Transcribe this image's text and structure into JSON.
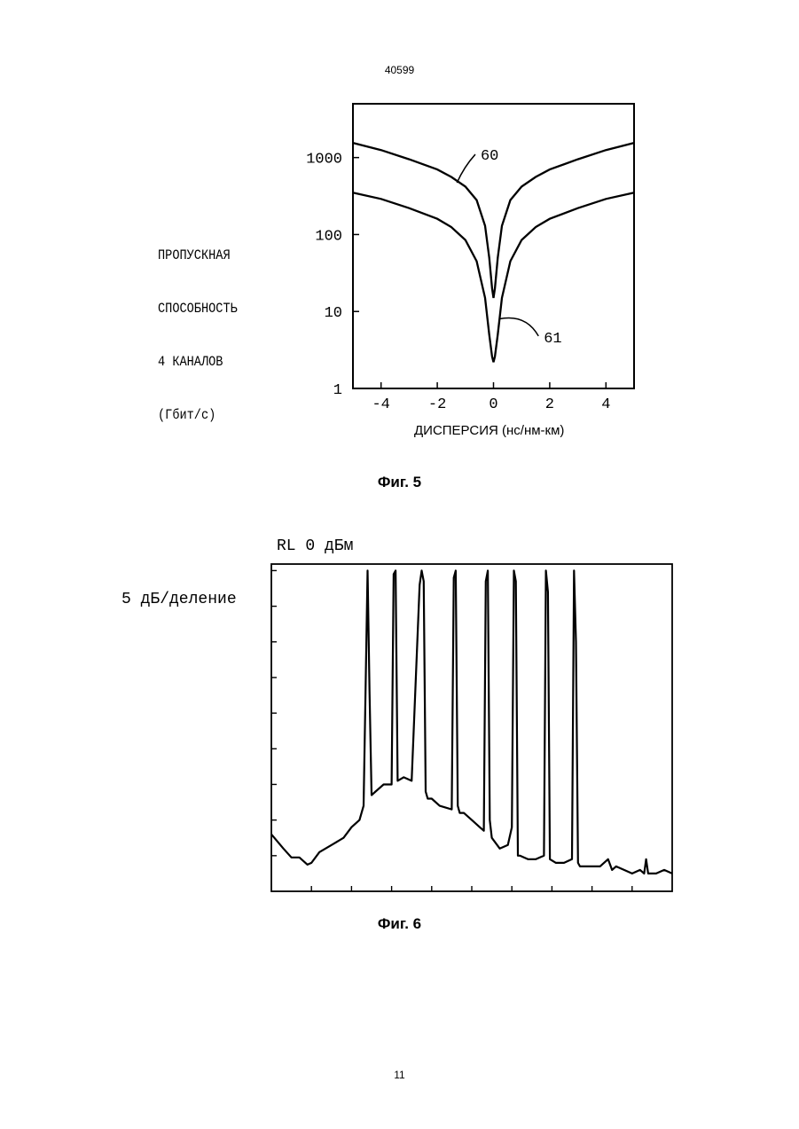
{
  "document": {
    "number": "40599",
    "page": "11"
  },
  "figure5": {
    "caption": "Фиг. 5",
    "ylabel_lines": [
      "ПРОПУСКНАЯ",
      "СПОСОБНОСТЬ",
      "4 КАНАЛОВ",
      "(Гбит/с)"
    ],
    "xlabel": "ДИСПЕРСИЯ (нс/нм-км)",
    "chart_data": {
      "type": "line",
      "x_scale": "linear",
      "y_scale": "log",
      "xlim": [
        -5,
        5
      ],
      "ylim": [
        1,
        5000
      ],
      "x_ticks": [
        -4,
        -2,
        0,
        2,
        4
      ],
      "y_ticks": [
        1,
        10,
        100,
        1000
      ],
      "x_tick_labels": [
        "-4",
        "-2",
        "0",
        "2",
        "4"
      ],
      "y_tick_labels": [
        "1",
        "10",
        "100",
        "1000"
      ],
      "grid": false,
      "series": [
        {
          "name": "60",
          "x": [
            -5,
            -4,
            -3,
            -2,
            -1.5,
            -1,
            -0.6,
            -0.3,
            -0.15,
            -0.05,
            0,
            0.05,
            0.15,
            0.3,
            0.6,
            1,
            1.5,
            2,
            3,
            4,
            5
          ],
          "y": [
            1550,
            1250,
            950,
            700,
            560,
            420,
            280,
            130,
            50,
            20,
            15,
            20,
            50,
            130,
            280,
            420,
            560,
            700,
            950,
            1250,
            1550
          ]
        },
        {
          "name": "61",
          "x": [
            -5,
            -4,
            -3,
            -2,
            -1.5,
            -1,
            -0.6,
            -0.3,
            -0.15,
            -0.05,
            0,
            0.05,
            0.15,
            0.3,
            0.6,
            1,
            1.5,
            2,
            3,
            4,
            5
          ],
          "y": [
            350,
            290,
            220,
            160,
            125,
            85,
            45,
            15,
            5,
            2.6,
            2.2,
            2.6,
            5,
            15,
            45,
            85,
            125,
            160,
            220,
            290,
            350
          ]
        }
      ]
    }
  },
  "figure6": {
    "caption": "Фиг. 6",
    "ylabel": "5 дБ/деление",
    "reference_label": "RL 0 дБм",
    "chart_data": {
      "type": "line",
      "y_unit": "дБ",
      "ylim_div": [
        0,
        9
      ],
      "xlim_div": [
        0,
        10
      ],
      "grid": false,
      "series": [
        {
          "name": "",
          "x": [
            0,
            0.3,
            0.5,
            0.7,
            0.9,
            1.0,
            1.2,
            1.5,
            1.8,
            2.0,
            2.2,
            2.3,
            2.35,
            2.4,
            2.45,
            2.5,
            2.6,
            2.8,
            3.0,
            3.05,
            3.1,
            3.15,
            3.3,
            3.5,
            3.7,
            3.75,
            3.8,
            3.85,
            3.9,
            4.0,
            4.2,
            4.5,
            4.55,
            4.6,
            4.65,
            4.7,
            4.8,
            5.0,
            5.2,
            5.3,
            5.35,
            5.4,
            5.45,
            5.5,
            5.7,
            5.9,
            6.0,
            6.05,
            6.1,
            6.15,
            6.2,
            6.4,
            6.6,
            6.8,
            6.85,
            6.9,
            6.95,
            7.1,
            7.3,
            7.5,
            7.55,
            7.6,
            7.65,
            7.7,
            7.9,
            8.2,
            8.4,
            8.5,
            8.6,
            8.8,
            9.0,
            9.2,
            9.3,
            9.35,
            9.4,
            9.6,
            9.8,
            10.0
          ],
          "y": [
            1.6,
            1.2,
            0.95,
            0.95,
            0.75,
            0.8,
            1.1,
            1.3,
            1.5,
            1.8,
            2.0,
            2.4,
            5.6,
            9.0,
            5.6,
            2.7,
            2.8,
            3.0,
            3.0,
            8.9,
            9.0,
            3.1,
            3.2,
            3.1,
            8.6,
            9.0,
            8.7,
            2.8,
            2.6,
            2.6,
            2.4,
            2.3,
            8.8,
            9.0,
            2.4,
            2.2,
            2.2,
            2.0,
            1.8,
            1.7,
            8.7,
            9.0,
            2.0,
            1.5,
            1.2,
            1.3,
            1.8,
            9.0,
            8.7,
            1.0,
            1.0,
            0.9,
            0.9,
            1.0,
            9.0,
            8.4,
            0.9,
            0.8,
            0.8,
            0.9,
            9.0,
            7.0,
            0.8,
            0.7,
            0.7,
            0.7,
            0.9,
            0.6,
            0.7,
            0.6,
            0.5,
            0.6,
            0.5,
            0.9,
            0.5,
            0.5,
            0.6,
            0.5
          ]
        }
      ]
    }
  }
}
